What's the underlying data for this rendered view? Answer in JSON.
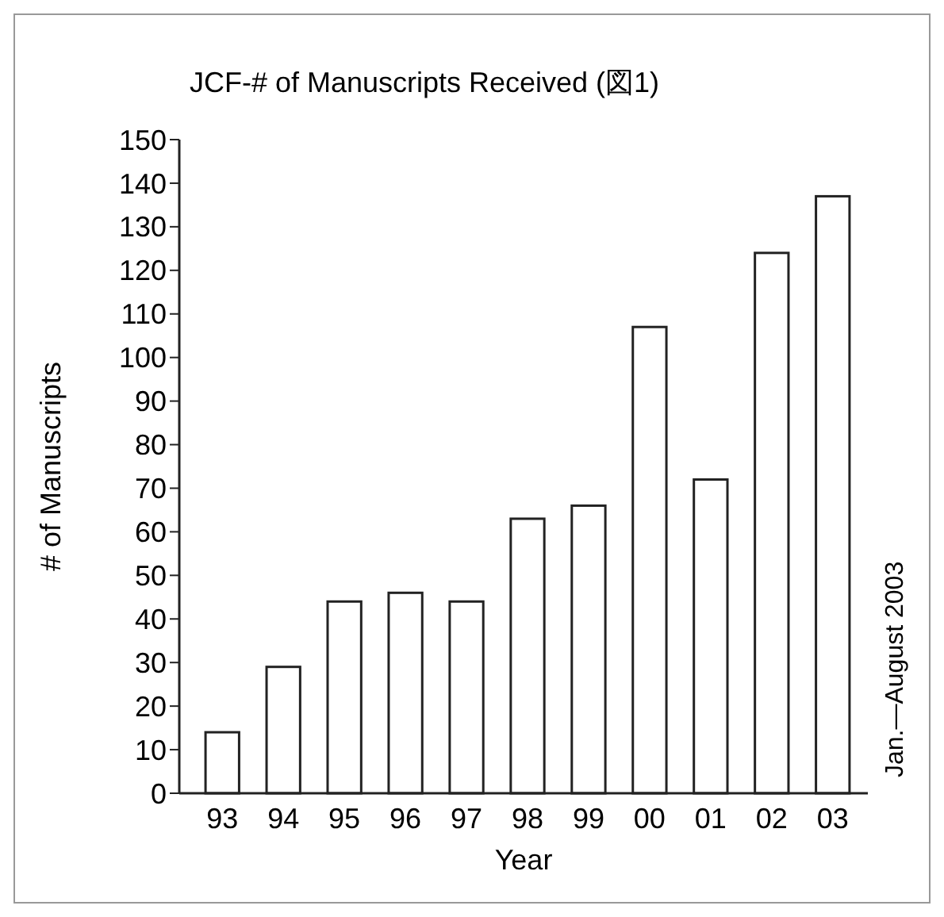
{
  "chart_data": {
    "type": "bar",
    "title": "JCF-# of Manuscripts Received (図1)",
    "xlabel": "Year",
    "ylabel": "# of Manuscripts",
    "categories": [
      "93",
      "94",
      "95",
      "96",
      "97",
      "98",
      "99",
      "00",
      "01",
      "02",
      "03"
    ],
    "values": [
      14,
      29,
      44,
      46,
      44,
      63,
      66,
      107,
      72,
      124,
      137
    ],
    "color": "#ffffff",
    "ylim": [
      0,
      150
    ],
    "yticks": [
      0,
      10,
      20,
      30,
      40,
      50,
      60,
      70,
      80,
      90,
      100,
      110,
      120,
      130,
      140,
      150
    ],
    "grid": false,
    "annotations": [
      "Jan.—August 2003"
    ]
  }
}
